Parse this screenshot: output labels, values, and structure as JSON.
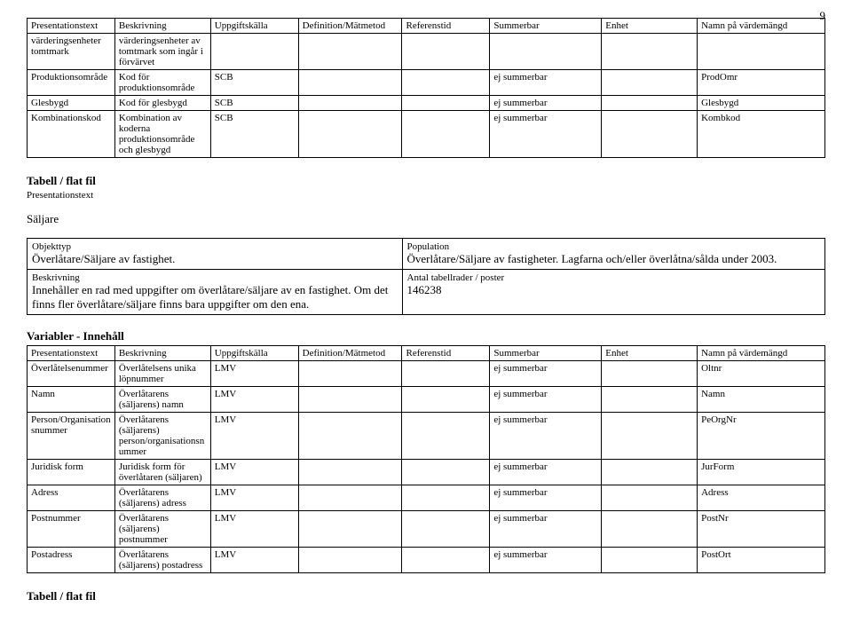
{
  "page_number": "9",
  "table1": {
    "headers": [
      "Presentationstext",
      "Beskrivning",
      "Uppgiftskälla",
      "Definition/Mätmetod",
      "Referenstid",
      "Summerbar",
      "Enhet",
      "Namn på värdemängd"
    ],
    "rows": [
      [
        "värderingsenheter tomtmark",
        "värderingsenheter av tomtmark som ingår i förvärvet",
        "",
        "",
        "",
        "",
        "",
        ""
      ],
      [
        "Produktionsområde",
        "Kod för produktionsområde",
        "SCB",
        "",
        "",
        "ej summerbar",
        "",
        "ProdOmr"
      ],
      [
        "Glesbygd",
        "Kod för glesbygd",
        "SCB",
        "",
        "",
        "ej summerbar",
        "",
        "Glesbygd"
      ],
      [
        "Kombinationskod",
        "Kombination av koderna produktionsområde och glesbygd",
        "SCB",
        "",
        "",
        "ej summerbar",
        "",
        "Kombkod"
      ]
    ]
  },
  "section": {
    "heading": "Tabell / flat fil",
    "pres_label": "Presentationstext",
    "pres_value": "Säljare",
    "obj_label": "Objekttyp",
    "obj_value": "Överlåtare/Säljare av fastighet.",
    "pop_label": "Population",
    "pop_value": "Överlåtare/Säljare av fastigheter. Lagfarna och/eller överlåtna/sålda under 2003.",
    "besk_label": "Beskrivning",
    "besk_value": "Innehåller en rad med uppgifter om överlåtare/säljare av en fastighet. Om det finns fler överlåtare/säljare finns bara uppgifter om den ena.",
    "antal_label": "Antal tabellrader / poster",
    "antal_value": "146238"
  },
  "variables_heading": "Variabler - Innehåll",
  "table2": {
    "headers": [
      "Presentationstext",
      "Beskrivning",
      "Uppgiftskälla",
      "Definition/Mätmetod",
      "Referenstid",
      "Summerbar",
      "Enhet",
      "Namn på värdemängd"
    ],
    "rows": [
      [
        "Överlåtelsenummer",
        "Överlåtelsens unika löpnummer",
        "LMV",
        "",
        "",
        "ej summerbar",
        "",
        "Oltnr"
      ],
      [
        "Namn",
        "Överlåtarens (säljarens) namn",
        "LMV",
        "",
        "",
        "ej summerbar",
        "",
        "Namn"
      ],
      [
        "Person/Organisationsnummer",
        "Överlåtarens (säljarens) person/organisationsnummer",
        "LMV",
        "",
        "",
        "ej summerbar",
        "",
        "PeOrgNr"
      ],
      [
        "Juridisk form",
        "Juridisk form för överlåtaren (säljaren)",
        "LMV",
        "",
        "",
        "ej summerbar",
        "",
        "JurForm"
      ],
      [
        "Adress",
        "Överlåtarens (säljarens) adress",
        "LMV",
        "",
        "",
        "ej summerbar",
        "",
        "Adress"
      ],
      [
        "Postnummer",
        "Överlåtarens (säljarens) postnummer",
        "LMV",
        "",
        "",
        "ej summerbar",
        "",
        "PostNr"
      ],
      [
        "Postadress",
        "Överlåtarens (säljarens) postadress",
        "LMV",
        "",
        "",
        "ej summerbar",
        "",
        "PostOrt"
      ]
    ]
  },
  "footer_heading": "Tabell / flat fil"
}
